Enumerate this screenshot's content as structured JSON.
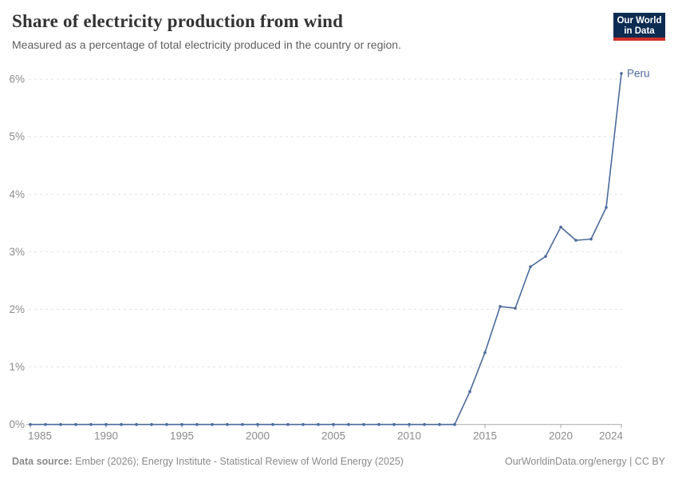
{
  "header": {
    "title": "Share of electricity production from wind",
    "subtitle": "Measured as a percentage of total electricity produced in the country or region.",
    "logo": {
      "line1": "Our World",
      "line2": "in Data"
    }
  },
  "footer": {
    "source_label": "Data source:",
    "source_text": " Ember (2026); Energy Institute - Statistical Review of World Energy (2025)",
    "link_text": "OurWorldinData.org/energy | CC BY"
  },
  "chart_data": {
    "type": "line",
    "title": "Share of electricity production from wind",
    "subtitle": "Measured as a percentage of total electricity produced in the country or region.",
    "xlabel": "",
    "ylabel": "",
    "x": [
      1985,
      1986,
      1987,
      1988,
      1989,
      1990,
      1991,
      1992,
      1993,
      1994,
      1995,
      1996,
      1997,
      1998,
      1999,
      2000,
      2001,
      2002,
      2003,
      2004,
      2005,
      2006,
      2007,
      2008,
      2009,
      2010,
      2011,
      2012,
      2013,
      2014,
      2015,
      2016,
      2017,
      2018,
      2019,
      2020,
      2021,
      2022,
      2023,
      2024
    ],
    "series": [
      {
        "name": "Peru",
        "color": "#4C6A9C",
        "values": [
          0,
          0,
          0,
          0,
          0,
          0,
          0,
          0,
          0,
          0,
          0,
          0,
          0,
          0,
          0,
          0,
          0,
          0,
          0,
          0,
          0,
          0,
          0,
          0,
          0,
          0,
          0,
          0,
          0,
          0.57,
          1.25,
          2.05,
          2.02,
          2.74,
          2.92,
          3.43,
          3.2,
          3.22,
          3.77,
          6.1
        ]
      }
    ],
    "end_label": "Peru",
    "xlim": [
      1985,
      2024
    ],
    "ylim": [
      0,
      6.2
    ],
    "xticks": [
      1985,
      1990,
      1995,
      2000,
      2005,
      2010,
      2015,
      2020,
      2024
    ],
    "yticks": [
      {
        "v": 0,
        "label": "0%"
      },
      {
        "v": 1,
        "label": "1%"
      },
      {
        "v": 2,
        "label": "2%"
      },
      {
        "v": 3,
        "label": "3%"
      },
      {
        "v": 4,
        "label": "4%"
      },
      {
        "v": 5,
        "label": "5%"
      },
      {
        "v": 6,
        "label": "6%"
      }
    ],
    "grid": "dashed-horizontal",
    "legend": "end-of-line-label",
    "colors": {
      "line": "#4C6A9C",
      "gridline": "#e2e2e2",
      "axis": "#a8a8a8",
      "tick_label": "#8c8c8c"
    }
  }
}
